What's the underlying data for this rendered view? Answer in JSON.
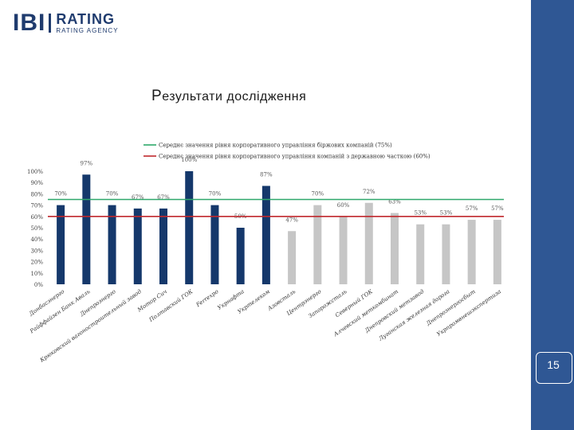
{
  "slide": {
    "title": "Результати дослідження",
    "page_number": "15"
  },
  "logo": {
    "mark": "IBI",
    "name": "RATING",
    "tagline": "RATING AGENCY"
  },
  "colors": {
    "sidebar": "#2f5794",
    "bar_dark": "#15386b",
    "bar_light": "#c6c6c6",
    "avg_line_green": "#2fa86b",
    "avg_line_red": "#c0282d"
  },
  "chart_data": {
    "type": "bar",
    "title": "",
    "ylabel": "",
    "xlabel": "",
    "ylim": [
      0,
      100
    ],
    "yticks": [
      "0%",
      "10%",
      "20%",
      "30%",
      "40%",
      "50%",
      "60%",
      "70%",
      "80%",
      "90%",
      "100%"
    ],
    "categories": [
      "Донбасэнерго",
      "Райффайзен Банк Аваль",
      "Днепроэнерго",
      "Крюковский вагоностроительный завод",
      "Мотор Сич",
      "Полтавский ГОК",
      "Ferrexpo",
      "Укрнафта",
      "Укртелеком",
      "Азовсталь",
      "Центрэнерго",
      "Запорожсталь",
      "Северный ГОК",
      "Алчевский меткомбинат",
      "Днепровский метзавод",
      "Луганская железная дорога",
      "Днепроэнергосбыт",
      "Укрпромвнешэкспертиза"
    ],
    "values": [
      70,
      97,
      70,
      67,
      67,
      100,
      70,
      50,
      87,
      47,
      70,
      60,
      72,
      63,
      53,
      53,
      57,
      57
    ],
    "value_labels": [
      "70%",
      "97%",
      "70%",
      "67%",
      "67%",
      "100%",
      "70%",
      "50%",
      "87%",
      "47%",
      "70%",
      "60%",
      "72%",
      "63%",
      "53%",
      "53%",
      "57%",
      "57%"
    ],
    "groups": [
      "dark",
      "dark",
      "dark",
      "dark",
      "dark",
      "dark",
      "dark",
      "dark",
      "dark",
      "light",
      "light",
      "light",
      "light",
      "light",
      "light",
      "light",
      "light",
      "light"
    ],
    "reference_lines": [
      {
        "name": "Середнє значення рівня корпоративного управління біржових компаній (75%)",
        "value": 75,
        "color": "#2fa86b"
      },
      {
        "name": "Середнє значення рівня корпоративного управління компаній з державною часткою (60%)",
        "value": 60,
        "color": "#c0282d"
      }
    ],
    "legend_position": "top"
  }
}
